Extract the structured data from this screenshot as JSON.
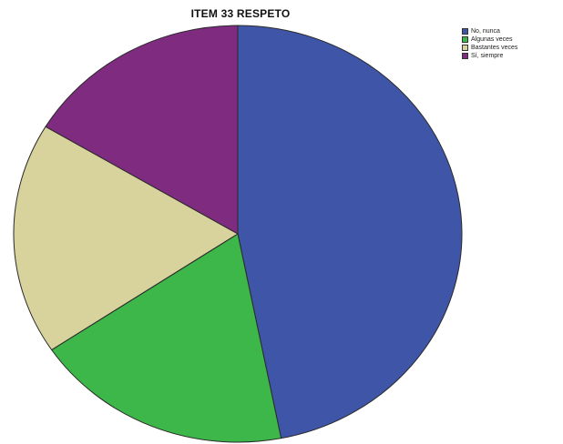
{
  "chart_data": {
    "type": "pie",
    "title": "ITEM 33 RESPETO",
    "legend_position": "top-right",
    "slices": [
      {
        "label": "No, nunca",
        "value": 46.9,
        "color": "#3F55A8"
      },
      {
        "label": "Algunas veces",
        "value": 18.7,
        "color": "#3DB64A"
      },
      {
        "label": "Bastantes veces",
        "value": 18.0,
        "color": "#D8D29C"
      },
      {
        "label": "Sí, siempre",
        "value": 16.4,
        "color": "#7E2B80"
      }
    ]
  }
}
